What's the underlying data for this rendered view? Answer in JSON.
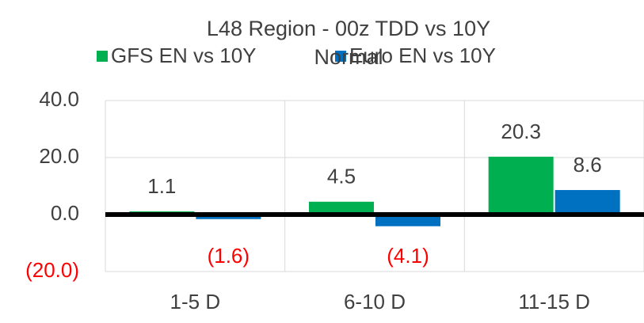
{
  "chart_data": {
    "type": "bar",
    "title": "L48 Region - 00z TDD vs 10Y Normal",
    "categories": [
      "1-5 D",
      "6-10 D",
      "11-15 D"
    ],
    "series": [
      {
        "name": "GFS EN vs 10Y",
        "color": "#00b050",
        "values": [
          1.1,
          4.5,
          20.3
        ]
      },
      {
        "name": "Euro EN vs 10Y",
        "color": "#0070c0",
        "values": [
          -1.6,
          -4.1,
          8.6
        ],
        "value_labels": [
          "(1.6)",
          "(4.1)",
          "8.6"
        ]
      }
    ],
    "ylim": [
      -20,
      40
    ],
    "yticks": [
      {
        "value": -20,
        "label": "(20.0)"
      },
      {
        "value": 0,
        "label": "0.0"
      },
      {
        "value": 20,
        "label": "20.0"
      },
      {
        "value": 40,
        "label": "40.0"
      }
    ],
    "grid": true,
    "negative_color": "#ff0000"
  }
}
